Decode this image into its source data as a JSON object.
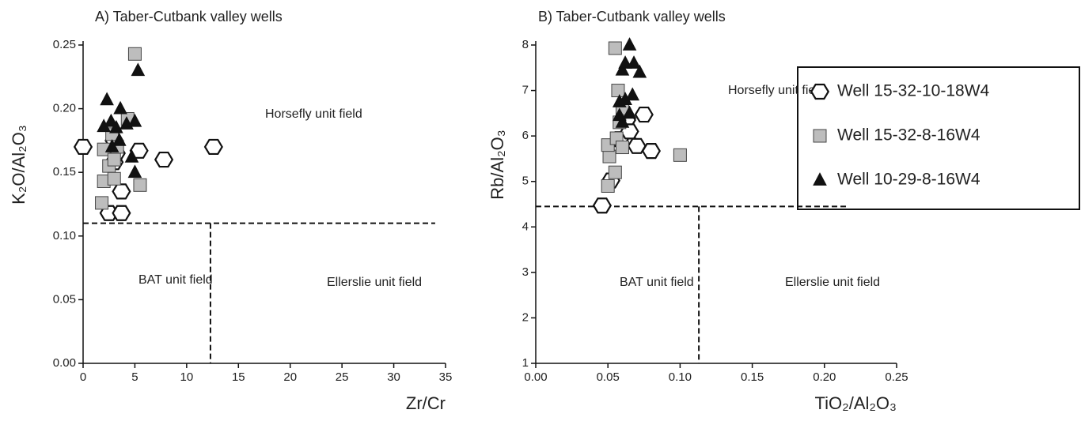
{
  "chart_data": [
    {
      "type": "scatter",
      "title": "A) Taber-Cutbank valley wells",
      "x_label": "Zr/Cr",
      "y_label": "K₂O/Al₂O₃",
      "xlim": [
        0,
        35
      ],
      "ylim": [
        0,
        0.25
      ],
      "xticks": [
        0,
        5,
        10,
        15,
        20,
        25,
        30,
        35
      ],
      "yticks": [
        {
          "value": 0,
          "label": "0.00"
        },
        {
          "value": 0.05,
          "label": "0.05"
        },
        {
          "value": 0.1,
          "label": "0.10"
        },
        {
          "value": 0.15,
          "label": "0.15"
        },
        {
          "value": 0.2,
          "label": "0.20"
        },
        {
          "value": 0.25,
          "label": "0.25"
        }
      ],
      "hline": {
        "y": 0.11,
        "xmax": 34
      },
      "vline": {
        "x": 12.3
      },
      "annotations": [
        "Horsefly unit field",
        "BAT unit field",
        "Ellerslie unit field"
      ],
      "series": [
        {
          "name": "Well 15-32-10-18W4",
          "marker": "hexagon",
          "color": "#ffffff",
          "edgecolor": "#111111",
          "x": [
            0,
            2.5,
            3.7,
            3.7,
            3,
            3,
            5.4,
            7.8,
            12.6,
            3.2
          ],
          "values": [
            0.17,
            0.118,
            0.118,
            0.135,
            0.158,
            0.175,
            0.167,
            0.16,
            0.17,
            0.165
          ]
        },
        {
          "name": "Well 15-32-8-16W4",
          "marker": "square",
          "color": "#bdbdbd",
          "edgecolor": "#444444",
          "x": [
            5,
            5.5,
            1.8,
            2,
            2,
            2.5,
            3,
            3.3,
            4.3,
            2.8,
            3
          ],
          "values": [
            0.243,
            0.14,
            0.126,
            0.143,
            0.168,
            0.155,
            0.145,
            0.17,
            0.192,
            0.18,
            0.16
          ]
        },
        {
          "name": "Well 10-29-8-16W4",
          "marker": "triangle",
          "color": "#111111",
          "edgecolor": "#111111",
          "x": [
            2.3,
            5.3,
            3.6,
            2,
            2.7,
            3.2,
            4.2,
            5,
            4.7,
            5,
            3.5,
            2.8
          ],
          "values": [
            0.207,
            0.23,
            0.2,
            0.186,
            0.19,
            0.185,
            0.188,
            0.19,
            0.162,
            0.15,
            0.175,
            0.17
          ]
        }
      ]
    },
    {
      "type": "scatter",
      "title": "B) Taber-Cutbank valley wells",
      "x_label": "TiO₂/Al₂O₃",
      "y_label": "Rb/Al₂O₃",
      "xlim": [
        0,
        0.25
      ],
      "ylim": [
        1,
        8
      ],
      "xticks": [
        {
          "value": 0,
          "label": "0.00"
        },
        {
          "value": 0.05,
          "label": "0.05"
        },
        {
          "value": 0.1,
          "label": "0.10"
        },
        {
          "value": 0.15,
          "label": "0.15"
        },
        {
          "value": 0.2,
          "label": "0.20"
        },
        {
          "value": 0.25,
          "label": "0.25"
        }
      ],
      "yticks": [
        1,
        2,
        3,
        4,
        5,
        6,
        7,
        8
      ],
      "hline": {
        "y": 4.45,
        "xmax": 0.215
      },
      "vline": {
        "x": 0.113
      },
      "annotations": [
        "Horsefly unit field",
        "BAT unit field",
        "Ellerslie unit field"
      ],
      "series": [
        {
          "marker": "hexagon",
          "color": "#ffffff",
          "edgecolor": "#111111",
          "x": [
            0.046,
            0.052,
            0.08,
            0.063,
            0.07,
            0.075,
            0.063,
            0.058,
            0.065
          ],
          "values": [
            4.47,
            5.02,
            5.67,
            5.95,
            5.78,
            6.47,
            6.35,
            5.93,
            6.1
          ]
        },
        {
          "marker": "square",
          "color": "#bdbdbd",
          "edgecolor": "#444444",
          "x": [
            0.055,
            0.1,
            0.05,
            0.051,
            0.05,
            0.055,
            0.056,
            0.058,
            0.06,
            0.057,
            0.06
          ],
          "values": [
            7.93,
            5.58,
            4.9,
            5.55,
            5.8,
            5.2,
            5.95,
            6.3,
            6.6,
            7.0,
            5.75
          ]
        },
        {
          "marker": "triangle",
          "color": "#111111",
          "edgecolor": "#111111",
          "x": [
            0.065,
            0.068,
            0.072,
            0.06,
            0.062,
            0.058,
            0.062,
            0.067,
            0.065,
            0.06,
            0.058
          ],
          "values": [
            8.0,
            7.6,
            7.4,
            7.45,
            7.6,
            6.75,
            6.8,
            6.9,
            6.5,
            6.3,
            6.45
          ]
        }
      ]
    }
  ]
}
